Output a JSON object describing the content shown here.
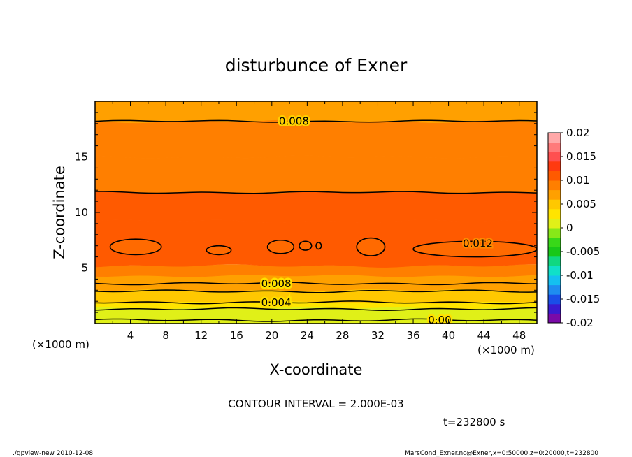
{
  "chart_data": {
    "type": "heatmap",
    "title": "disturbunce of Exner",
    "xlabel": "X-coordinate",
    "ylabel": "Z-coordinate",
    "xunit": "(×1000 m)",
    "yunit": "(×1000 m)",
    "xlim": [
      0,
      50
    ],
    "ylim": [
      0,
      20
    ],
    "xticks": [
      4,
      8,
      12,
      16,
      20,
      24,
      28,
      32,
      36,
      40,
      44,
      48
    ],
    "yticks": [
      5,
      10,
      15
    ],
    "contour_interval": "CONTOUR INTERVAL = 2.000E-03",
    "time": "t=232800 s",
    "footer_left": "./gpview-new   2010-12-08",
    "footer_right": "MarsCond_Exner.nc@Exner,x=0:50000,z=0:20000,t=232800",
    "colorbar": {
      "range": [
        -0.02,
        0.02
      ],
      "labels": [
        "0.02",
        "0.015",
        "0.01",
        "0.005",
        "0",
        "-0.005",
        "-0.01",
        "-0.015",
        "-0.02"
      ],
      "colors": [
        "#7a0aa8",
        "#3a1ad0",
        "#1a4ee8",
        "#1e8cf0",
        "#14c0f0",
        "#10e0c8",
        "#10d880",
        "#18c818",
        "#38d818",
        "#88e818",
        "#e0f018",
        "#ffe400",
        "#ffc800",
        "#ffa000",
        "#ff7f00",
        "#ff5a00",
        "#ff3a10",
        "#ff5050",
        "#ff7a7a",
        "#ffa8a8"
      ]
    },
    "bands_z": [
      {
        "z_min": 0.0,
        "z_max": 0.5,
        "value": 0.0
      },
      {
        "z_min": 0.5,
        "z_max": 0.9,
        "value": 0.001
      },
      {
        "z_min": 0.9,
        "z_max": 1.4,
        "value": 0.002
      },
      {
        "z_min": 1.4,
        "z_max": 1.9,
        "value": 0.003
      },
      {
        "z_min": 1.9,
        "z_max": 2.4,
        "value": 0.004
      },
      {
        "z_min": 2.4,
        "z_max": 3.0,
        "value": 0.005
      },
      {
        "z_min": 3.0,
        "z_max": 3.6,
        "value": 0.006
      },
      {
        "z_min": 3.6,
        "z_max": 4.3,
        "value": 0.007
      },
      {
        "z_min": 4.3,
        "z_max": 5.2,
        "value": 0.008
      },
      {
        "z_min": 5.2,
        "z_max": 9.2,
        "value": 0.011
      },
      {
        "z_min": 9.2,
        "z_max": 11.8,
        "value": 0.01
      },
      {
        "z_min": 11.8,
        "z_max": 15.0,
        "value": 0.009
      },
      {
        "z_min": 15.0,
        "z_max": 18.2,
        "value": 0.008
      },
      {
        "z_min": 18.2,
        "z_max": 20.0,
        "value": 0.007
      }
    ],
    "contour_lines": [
      {
        "value": "0.008",
        "z": 18.2
      },
      {
        "value": "",
        "z": 11.8
      },
      {
        "value": "0.008",
        "z": 3.6
      },
      {
        "value": "",
        "z": 2.9
      },
      {
        "value": "0.004",
        "z": 1.9
      },
      {
        "value": "",
        "z": 1.3
      },
      {
        "value": "0.00",
        "z": 0.3
      }
    ],
    "cells_012": [
      {
        "x": 4.6,
        "z": 6.9,
        "rx": 2.9,
        "rz": 0.7
      },
      {
        "x": 14.0,
        "z": 6.6,
        "rx": 1.4,
        "rz": 0.4
      },
      {
        "x": 21.0,
        "z": 6.9,
        "rx": 1.5,
        "rz": 0.6
      },
      {
        "x": 23.8,
        "z": 7.0,
        "rx": 0.7,
        "rz": 0.4
      },
      {
        "x": 25.3,
        "z": 7.0,
        "rx": 0.3,
        "rz": 0.3
      },
      {
        "x": 31.2,
        "z": 6.9,
        "rx": 1.6,
        "rz": 0.8
      },
      {
        "x": 43.0,
        "z": 6.7,
        "rx": 7.0,
        "rz": 0.7
      }
    ],
    "cell_label": "0.012"
  }
}
